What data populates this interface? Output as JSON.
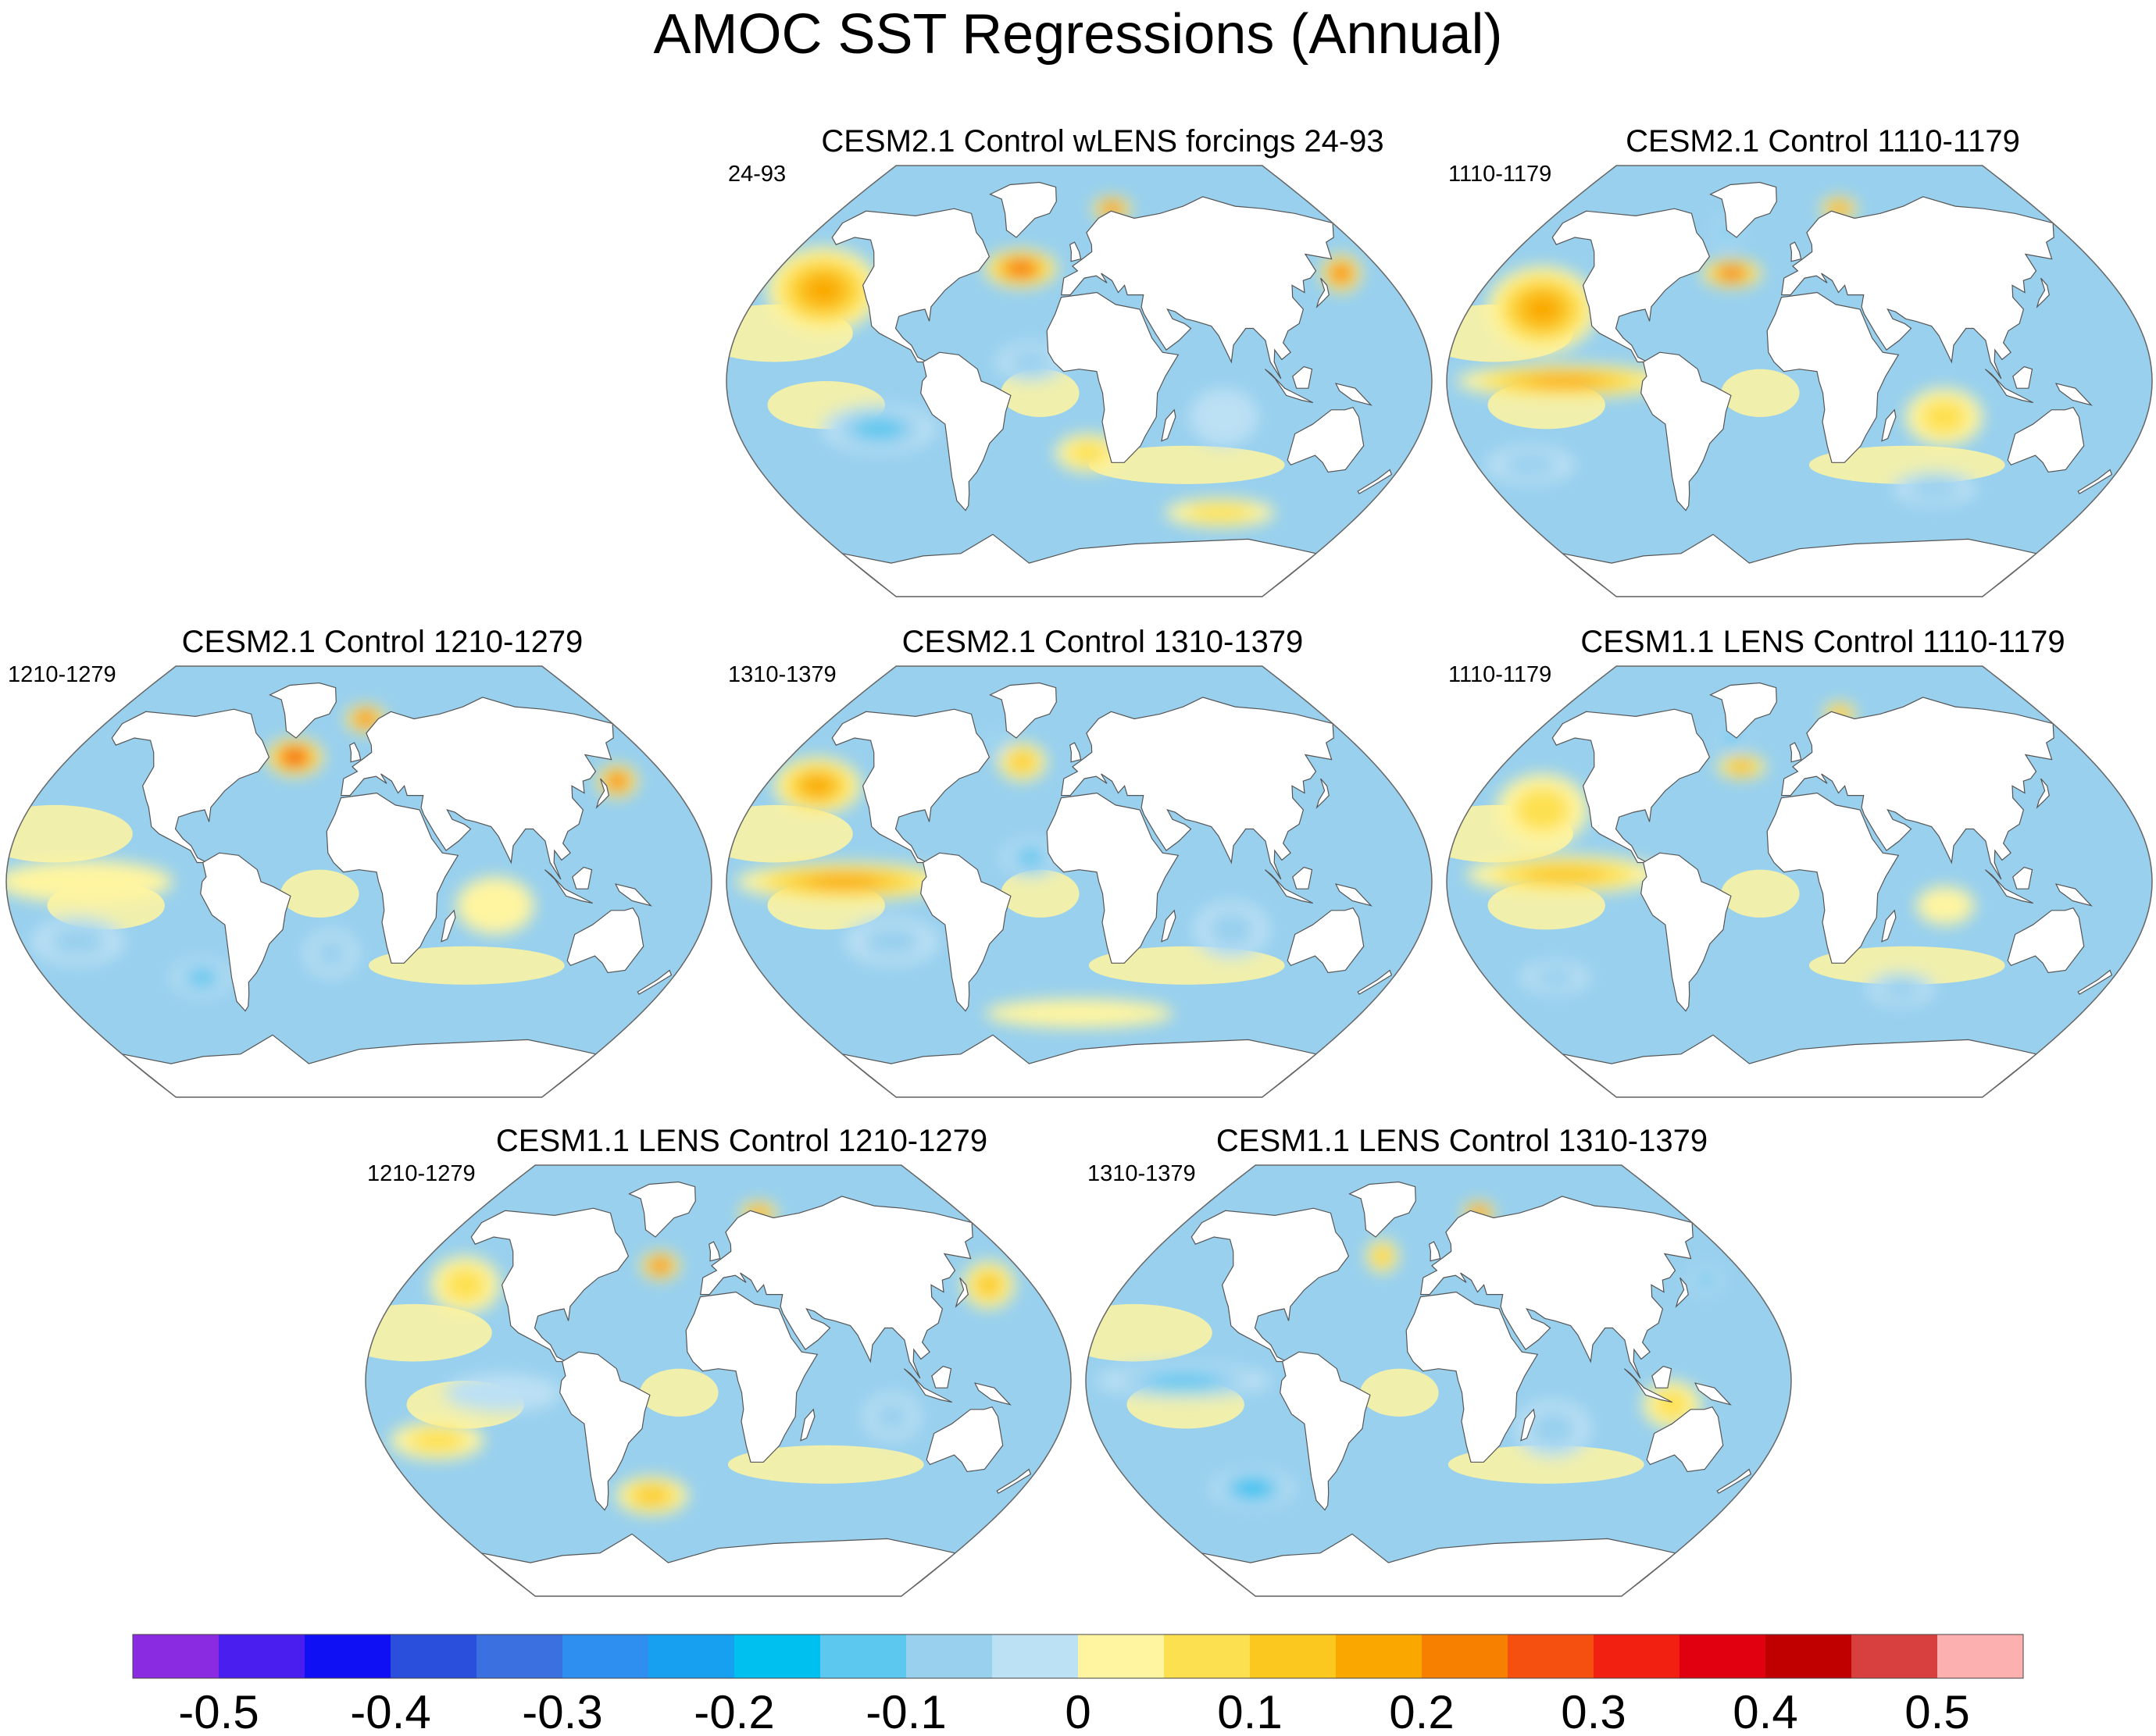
{
  "chart_data": {
    "type": "heatmap",
    "title": "AMOC SST Regressions (Annual)",
    "projection": "Robinson",
    "panels": [
      {
        "title": "CESM2.1 Control wLENS forcings 24-93",
        "left_label": "24-93",
        "features": [
          {
            "region": "NE Pacific",
            "lon": -145,
            "lat": 38,
            "rlon": 32,
            "rlat": 18,
            "value": 0.22
          },
          {
            "region": "subpolar N Atlantic",
            "lon": -35,
            "lat": 47,
            "rlon": 22,
            "rlat": 8,
            "value": 0.32
          },
          {
            "region": "Barents Sea",
            "lon": 25,
            "lat": 72,
            "rlon": 15,
            "rlat": 5,
            "value": 0.28
          },
          {
            "region": "NW Pacific",
            "lon": 155,
            "lat": 45,
            "rlon": 12,
            "rlat": 8,
            "value": 0.3
          },
          {
            "region": "tropical Atlantic",
            "lon": -25,
            "lat": 8,
            "rlon": 18,
            "rlat": 8,
            "value": -0.12
          },
          {
            "region": "SE Pacific",
            "lon": -105,
            "lat": -20,
            "rlon": 30,
            "rlat": 10,
            "value": -0.17
          },
          {
            "region": "S Atlantic",
            "lon": 5,
            "lat": -30,
            "rlon": 18,
            "rlat": 8,
            "value": 0.08
          },
          {
            "region": "Southern Ocean",
            "lon": 90,
            "lat": -55,
            "rlon": 35,
            "rlat": 6,
            "value": 0.08
          },
          {
            "region": "Indian Ocean",
            "lon": 75,
            "lat": -15,
            "rlon": 18,
            "rlat": 12,
            "value": -0.06
          }
        ]
      },
      {
        "title": "CESM2.1 Control 1110-1179",
        "left_label": "1110-1179",
        "features": [
          {
            "region": "NE Pacific",
            "lon": -140,
            "lat": 30,
            "rlon": 30,
            "rlat": 18,
            "value": 0.18
          },
          {
            "region": "eastern tropical Pacific",
            "lon": -120,
            "lat": 0,
            "rlon": 55,
            "rlat": 7,
            "value": 0.2
          },
          {
            "region": "subpolar N Atlantic",
            "lon": -40,
            "lat": 45,
            "rlon": 18,
            "rlat": 6,
            "value": 0.32
          },
          {
            "region": "Labrador Sea",
            "lon": -50,
            "lat": 62,
            "rlon": 10,
            "rlat": 6,
            "value": -0.15
          },
          {
            "region": "Barents Sea",
            "lon": 30,
            "lat": 72,
            "rlon": 14,
            "rlat": 5,
            "value": 0.25
          },
          {
            "region": "S Pacific",
            "lon": -150,
            "lat": -35,
            "rlon": 25,
            "rlat": 8,
            "value": -0.1
          },
          {
            "region": "Indian Ocean",
            "lon": 75,
            "lat": -15,
            "rlon": 20,
            "rlat": 12,
            "value": 0.08
          },
          {
            "region": "Southern Indian Ocean",
            "lon": 80,
            "lat": -45,
            "rlon": 25,
            "rlat": 7,
            "value": -0.12
          }
        ]
      },
      {
        "title": "CESM2.1 Control 1210-1279",
        "left_label": "1210-1279",
        "features": [
          {
            "region": "subpolar N Atlantic",
            "lon": -40,
            "lat": 52,
            "rlon": 18,
            "rlat": 8,
            "value": 0.35
          },
          {
            "region": "Nordic Seas",
            "lon": 5,
            "lat": 68,
            "rlon": 15,
            "rlat": 6,
            "value": 0.32
          },
          {
            "region": "Kuroshio",
            "lon": 150,
            "lat": 42,
            "rlon": 12,
            "rlat": 7,
            "value": 0.28
          },
          {
            "region": "tropical Pacific",
            "lon": -140,
            "lat": 0,
            "rlon": 45,
            "rlat": 9,
            "value": 0.07
          },
          {
            "region": "S Pacific",
            "lon": -150,
            "lat": -25,
            "rlon": 25,
            "rlat": 10,
            "value": -0.12
          },
          {
            "region": "SE Pacific",
            "lon": -90,
            "lat": -40,
            "rlon": 18,
            "rlat": 8,
            "value": -0.13
          },
          {
            "region": "S Atlantic",
            "lon": -15,
            "lat": -30,
            "rlon": 15,
            "rlat": 10,
            "value": -0.12
          },
          {
            "region": "Indian Ocean",
            "lon": 70,
            "lat": -10,
            "rlon": 20,
            "rlat": 12,
            "value": 0.06
          }
        ]
      },
      {
        "title": "CESM2.1 Control 1310-1379",
        "left_label": "1310-1379",
        "features": [
          {
            "region": "NE Pacific",
            "lon": -150,
            "lat": 40,
            "rlon": 25,
            "rlat": 12,
            "value": 0.18
          },
          {
            "region": "eastern tropical Pacific",
            "lon": -120,
            "lat": 0,
            "rlon": 55,
            "rlat": 8,
            "value": 0.2
          },
          {
            "region": "subpolar N Atlantic",
            "lon": -35,
            "lat": 50,
            "rlon": 15,
            "rlat": 8,
            "value": 0.15
          },
          {
            "region": "Labrador Sea",
            "lon": -55,
            "lat": 58,
            "rlon": 8,
            "rlat": 5,
            "value": -0.15
          },
          {
            "region": "tropical Atlantic",
            "lon": -25,
            "lat": 10,
            "rlon": 15,
            "rlat": 8,
            "value": -0.15
          },
          {
            "region": "SE Pacific",
            "lon": -100,
            "lat": -25,
            "rlon": 25,
            "rlat": 10,
            "value": -0.12
          },
          {
            "region": "Southern Ocean",
            "lon": 0,
            "lat": -55,
            "rlon": 60,
            "rlat": 6,
            "value": 0.07
          },
          {
            "region": "Indian Ocean",
            "lon": 80,
            "lat": -20,
            "rlon": 20,
            "rlat": 12,
            "value": -0.08
          }
        ]
      },
      {
        "title": "CESM1.1 LENS Control 1110-1179",
        "left_label": "1110-1179",
        "features": [
          {
            "region": "NE Pacific",
            "lon": -140,
            "lat": 30,
            "rlon": 25,
            "rlat": 15,
            "value": 0.12
          },
          {
            "region": "eastern tropical Pacific",
            "lon": -120,
            "lat": 3,
            "rlon": 50,
            "rlat": 8,
            "value": 0.15
          },
          {
            "region": "subpolar N Atlantic",
            "lon": -35,
            "lat": 48,
            "rlon": 15,
            "rlat": 5,
            "value": 0.2
          },
          {
            "region": "Labrador Sea",
            "lon": -45,
            "lat": 60,
            "rlon": 10,
            "rlat": 5,
            "value": -0.2
          },
          {
            "region": "Barents Sea",
            "lon": 30,
            "lat": 70,
            "rlon": 12,
            "rlat": 5,
            "value": 0.2
          },
          {
            "region": "S Pacific",
            "lon": -140,
            "lat": -40,
            "rlon": 20,
            "rlat": 7,
            "value": -0.12
          },
          {
            "region": "Southern Indian Ocean",
            "lon": 60,
            "lat": -45,
            "rlon": 20,
            "rlat": 7,
            "value": -0.12
          },
          {
            "region": "Indian Ocean",
            "lon": 75,
            "lat": -10,
            "rlon": 15,
            "rlat": 8,
            "value": 0.05
          }
        ]
      },
      {
        "title": "CESM1.1 LENS Control 1210-1279",
        "left_label": "1210-1279",
        "features": [
          {
            "region": "NE Pacific",
            "lon": -145,
            "lat": 40,
            "rlon": 20,
            "rlat": 12,
            "value": 0.12
          },
          {
            "region": "subpolar N Atlantic",
            "lon": -35,
            "lat": 48,
            "rlon": 12,
            "rlat": 6,
            "value": 0.3
          },
          {
            "region": "Barents Sea",
            "lon": 30,
            "lat": 70,
            "rlon": 14,
            "rlat": 5,
            "value": 0.25
          },
          {
            "region": "S Atlantic",
            "lon": -40,
            "lat": -48,
            "rlon": 22,
            "rlat": 8,
            "value": 0.17
          },
          {
            "region": "S Pacific",
            "lon": -150,
            "lat": -25,
            "rlon": 25,
            "rlat": 8,
            "value": 0.1
          },
          {
            "region": "NW Pacific",
            "lon": 155,
            "lat": 40,
            "rlon": 15,
            "rlat": 10,
            "value": 0.15
          },
          {
            "region": "eastern Pacific",
            "lon": -110,
            "lat": -5,
            "rlon": 30,
            "rlat": 8,
            "value": -0.06
          },
          {
            "region": "Indian Ocean",
            "lon": 90,
            "lat": -15,
            "rlon": 15,
            "rlat": 10,
            "value": -0.08
          }
        ]
      },
      {
        "title": "CESM1.1 LENS Control 1310-1379",
        "left_label": "1310-1379",
        "features": [
          {
            "region": "subpolar N Atlantic",
            "lon": -35,
            "lat": 52,
            "rlon": 10,
            "rlat": 7,
            "value": 0.15
          },
          {
            "region": "Barents Sea",
            "lon": 30,
            "lat": 70,
            "rlon": 12,
            "rlat": 5,
            "value": 0.32
          },
          {
            "region": "eastern tropical Pacific",
            "lon": -130,
            "lat": 0,
            "rlon": 45,
            "rlat": 7,
            "value": -0.15
          },
          {
            "region": "SE Pacific",
            "lon": -110,
            "lat": -45,
            "rlon": 25,
            "rlat": 8,
            "value": -0.2
          },
          {
            "region": "Indian Ocean",
            "lon": 60,
            "lat": -20,
            "rlon": 20,
            "rlat": 12,
            "value": -0.12
          },
          {
            "region": "Maritime Continent",
            "lon": 120,
            "lat": -10,
            "rlon": 15,
            "rlat": 10,
            "value": 0.1
          },
          {
            "region": "NW Pacific",
            "lon": 155,
            "lat": 42,
            "rlon": 10,
            "rlat": 6,
            "value": -0.15
          }
        ]
      }
    ],
    "colorbar": {
      "levels": [
        -0.55,
        -0.5,
        -0.45,
        -0.4,
        -0.35,
        -0.3,
        -0.25,
        -0.2,
        -0.15,
        -0.1,
        -0.05,
        0,
        0.05,
        0.1,
        0.15,
        0.2,
        0.25,
        0.3,
        0.35,
        0.4,
        0.45,
        0.5,
        0.55
      ],
      "colors": [
        "#8a2be2",
        "#4b1ef0",
        "#1010f5",
        "#2a4fdc",
        "#3a70e0",
        "#2f8ff0",
        "#18a0f0",
        "#00c0f0",
        "#5cc8f0",
        "#98d0ee",
        "#bce0f4",
        "#fff5a0",
        "#fde050",
        "#fbc820",
        "#faa800",
        "#f88000",
        "#f65010",
        "#f22010",
        "#e00010",
        "#c00000",
        "#d84040",
        "#fcb0b0"
      ],
      "tick_labels": [
        "-0.5",
        "-0.4",
        "-0.3",
        "-0.2",
        "-0.1",
        "0",
        "0.1",
        "0.2",
        "0.3",
        "0.4",
        "0.5"
      ],
      "tick_values": [
        -0.5,
        -0.4,
        -0.3,
        -0.2,
        -0.1,
        0,
        0.1,
        0.2,
        0.3,
        0.4,
        0.5
      ]
    }
  }
}
